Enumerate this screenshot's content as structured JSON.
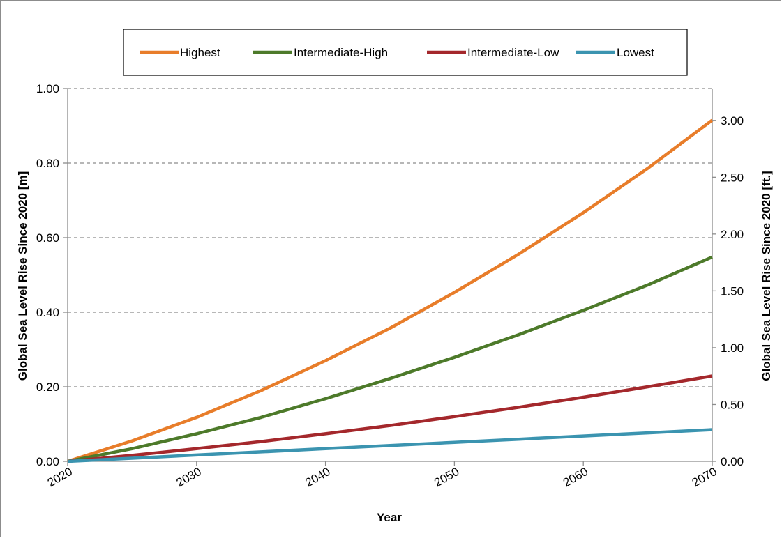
{
  "chart_data": {
    "type": "line",
    "xlabel": "Year",
    "ylabel": "Global Sea Level Rise Since 2020 [m]",
    "y2label": "Global Sea Level Rise Since 2020 [ft.]",
    "xlim": [
      2020,
      2070
    ],
    "ylim": [
      0,
      1.0
    ],
    "y2lim": [
      0,
      3.28084
    ],
    "x_ticks": [
      "2020",
      "2030",
      "2040",
      "2050",
      "2060",
      "2070"
    ],
    "y_ticks": [
      "0.00",
      "0.20",
      "0.40",
      "0.60",
      "0.80",
      "1.00"
    ],
    "y2_ticks": [
      "0.00",
      "0.50",
      "1.00",
      "1.50",
      "2.00",
      "2.50",
      "3.00"
    ],
    "grid": "horizontal-dashed",
    "legend_position": "top",
    "x": [
      2020,
      2025,
      2030,
      2035,
      2040,
      2045,
      2050,
      2055,
      2060,
      2065,
      2070
    ],
    "series": [
      {
        "name": "Highest",
        "color": "#e87d2a",
        "values": [
          0.0,
          0.055,
          0.118,
          0.19,
          0.27,
          0.357,
          0.453,
          0.556,
          0.667,
          0.786,
          0.915
        ]
      },
      {
        "name": "Intermediate-High",
        "color": "#4d7a2a",
        "values": [
          0.0,
          0.034,
          0.074,
          0.118,
          0.168,
          0.222,
          0.279,
          0.34,
          0.405,
          0.473,
          0.548
        ]
      },
      {
        "name": "Intermediate-Low",
        "color": "#a4282c",
        "values": [
          0.0,
          0.016,
          0.034,
          0.053,
          0.074,
          0.096,
          0.12,
          0.145,
          0.172,
          0.2,
          0.229
        ]
      },
      {
        "name": "Lowest",
        "color": "#3b94b0",
        "values": [
          0.0,
          0.0085,
          0.017,
          0.0255,
          0.034,
          0.0425,
          0.051,
          0.0595,
          0.068,
          0.0765,
          0.085
        ]
      }
    ]
  }
}
